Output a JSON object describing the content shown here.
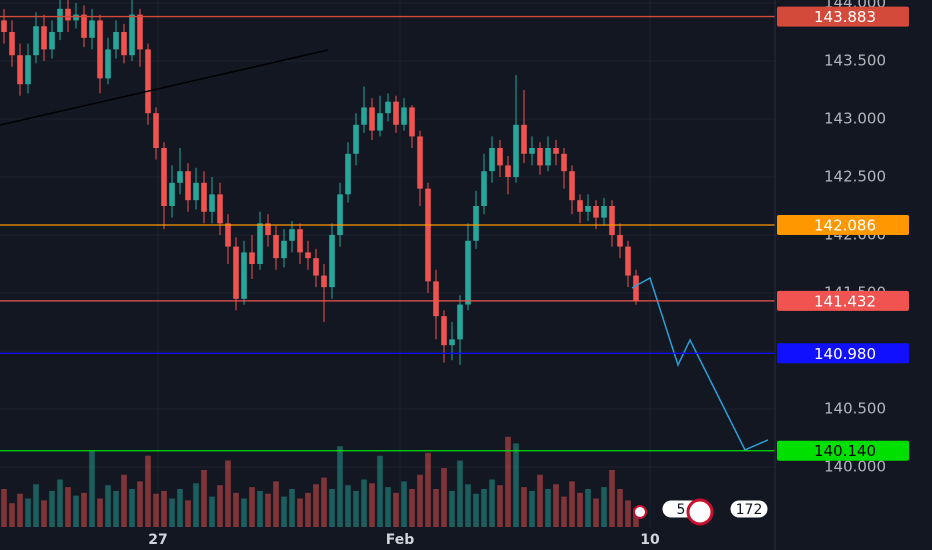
{
  "chart_data": {
    "type": "candlestick",
    "xlim": [
      -0.5,
      96.375
    ],
    "xticks": [
      {
        "value": 19.25,
        "label": "27"
      },
      {
        "value": 49.5,
        "label": "Feb"
      },
      {
        "value": 80.75,
        "label": "10"
      }
    ],
    "ylim": [
      139.284,
      144.026
    ],
    "yticks": [
      {
        "value": 140,
        "label": "140.000"
      },
      {
        "value": 140.5,
        "label": "140.500"
      },
      {
        "value": 141,
        "label": "141.000"
      },
      {
        "value": 141.5,
        "label": "141.500"
      },
      {
        "value": 142,
        "label": "142.000"
      },
      {
        "value": 142.5,
        "label": "142.500"
      },
      {
        "value": 143,
        "label": "143.000"
      },
      {
        "value": 143.5,
        "label": "143.500"
      },
      {
        "value": 144,
        "label": "144.000"
      }
    ],
    "grid": true,
    "up_color": "#26a69a",
    "down_color": "#ef5350",
    "open": [
      143.85,
      143.75,
      143.55,
      143.3,
      143.55,
      143.8,
      143.6,
      143.75,
      143.95,
      143.85,
      143.9,
      143.7,
      143.85,
      143.35,
      143.6,
      143.75,
      143.55,
      143.9,
      143.6,
      143.05,
      142.75,
      142.25,
      142.45,
      142.55,
      142.3,
      142.45,
      142.2,
      142.35,
      142.1,
      141.9,
      141.45,
      141.85,
      141.75,
      142.1,
      142.0,
      141.8,
      141.95,
      142.05,
      141.85,
      141.8,
      141.65,
      141.55,
      142.0,
      142.35,
      142.7,
      142.95,
      143.1,
      142.9,
      143.05,
      143.15,
      142.95,
      143.1,
      142.85,
      142.4,
      141.6,
      141.3,
      141.05,
      141.1,
      141.4,
      141.95,
      142.25,
      142.55,
      142.75,
      142.6,
      142.5,
      142.95,
      142.7,
      142.75,
      142.6,
      142.75,
      142.7,
      142.55,
      142.3,
      142.2,
      142.25,
      142.15,
      142.25,
      142.0,
      141.9,
      141.65
    ],
    "high": [
      143.95,
      143.85,
      143.65,
      143.65,
      143.92,
      143.9,
      143.85,
      144.03,
      144.03,
      144.0,
      143.98,
      143.95,
      143.9,
      143.7,
      143.85,
      143.82,
      144.03,
      143.95,
      143.65,
      143.1,
      142.8,
      142.6,
      142.75,
      142.62,
      142.58,
      142.55,
      142.5,
      142.45,
      142.18,
      141.98,
      141.95,
      142.0,
      142.2,
      142.18,
      142.08,
      142.05,
      142.12,
      142.1,
      141.95,
      141.88,
      141.75,
      142.1,
      142.45,
      142.8,
      143.05,
      143.28,
      143.18,
      143.2,
      143.22,
      143.2,
      143.18,
      143.12,
      142.9,
      142.45,
      141.7,
      141.35,
      141.25,
      141.48,
      142.1,
      142.38,
      142.7,
      142.85,
      142.82,
      142.68,
      143.38,
      143.25,
      142.85,
      142.8,
      142.85,
      142.82,
      142.75,
      142.6,
      142.35,
      142.35,
      142.3,
      142.32,
      142.3,
      142.1,
      141.95,
      141.7
    ],
    "low": [
      143.65,
      143.45,
      143.2,
      143.22,
      143.48,
      143.5,
      143.52,
      143.68,
      143.75,
      143.78,
      143.62,
      143.6,
      143.22,
      143.3,
      143.52,
      143.48,
      143.5,
      143.45,
      142.95,
      142.65,
      142.05,
      142.15,
      142.35,
      142.2,
      142.22,
      142.1,
      142.1,
      142.0,
      141.75,
      141.35,
      141.4,
      141.62,
      141.7,
      141.9,
      141.7,
      141.72,
      141.85,
      141.75,
      141.7,
      141.55,
      141.25,
      141.45,
      141.9,
      142.28,
      142.6,
      142.88,
      142.82,
      142.85,
      142.98,
      142.88,
      142.9,
      142.75,
      142.25,
      141.5,
      141.1,
      140.9,
      140.92,
      140.88,
      141.35,
      141.88,
      142.18,
      142.45,
      142.5,
      142.35,
      142.45,
      142.62,
      142.6,
      142.52,
      142.55,
      142.6,
      142.4,
      142.18,
      142.1,
      142.12,
      142.05,
      142.08,
      141.9,
      141.8,
      141.55,
      141.4
    ],
    "close": [
      143.75,
      143.55,
      143.3,
      143.55,
      143.8,
      143.6,
      143.75,
      143.95,
      143.85,
      143.9,
      143.7,
      143.85,
      143.35,
      143.6,
      143.75,
      143.55,
      143.9,
      143.6,
      143.05,
      142.75,
      142.25,
      142.45,
      142.55,
      142.3,
      142.45,
      142.2,
      142.35,
      142.1,
      141.9,
      141.45,
      141.85,
      141.75,
      142.1,
      142.0,
      141.8,
      141.95,
      142.05,
      141.85,
      141.8,
      141.65,
      141.55,
      142.0,
      142.35,
      142.7,
      142.95,
      143.1,
      142.9,
      143.05,
      143.15,
      142.95,
      143.1,
      142.85,
      142.4,
      141.6,
      141.3,
      141.05,
      141.1,
      141.4,
      141.95,
      142.25,
      142.55,
      142.75,
      142.6,
      142.5,
      142.95,
      142.7,
      142.75,
      142.6,
      142.75,
      142.7,
      142.55,
      142.3,
      142.2,
      142.25,
      142.15,
      142.25,
      142.0,
      141.9,
      141.65,
      141.43
    ],
    "volume": {
      "ylim": [
        0,
        100
      ],
      "values": [
        40,
        25,
        35,
        30,
        45,
        28,
        38,
        50,
        42,
        33,
        36,
        80,
        30,
        44,
        38,
        55,
        40,
        48,
        75,
        35,
        38,
        30,
        40,
        28,
        46,
        60,
        32,
        44,
        70,
        36,
        30,
        42,
        38,
        35,
        48,
        32,
        40,
        30,
        36,
        45,
        52,
        40,
        85,
        44,
        38,
        50,
        46,
        75,
        42,
        36,
        48,
        40,
        55,
        78,
        40,
        62,
        38,
        70,
        45,
        35,
        40,
        50,
        44,
        95,
        88,
        42,
        38,
        55,
        40,
        45,
        32,
        48,
        36,
        40,
        30,
        42,
        60,
        40,
        28,
        20
      ]
    },
    "levels": [
      {
        "value": 143.883,
        "label": "143.883",
        "color": "#d44a3a",
        "text_color": "#ffffff"
      },
      {
        "value": 142.086,
        "label": "142.086",
        "color": "#ff9800",
        "text_color": "#ffffff"
      },
      {
        "value": 141.432,
        "label": "141.432",
        "color": "#f05350",
        "text_color": "#ffffff"
      },
      {
        "value": 140.98,
        "label": "140.980",
        "color": "#1010ff",
        "text_color": "#ffffff"
      },
      {
        "value": 140.14,
        "label": "140.140",
        "color": "#00e000",
        "text_color": "#000000"
      }
    ],
    "trend_line": {
      "x": [
        -0.5,
        40.5
      ],
      "y": [
        142.948,
        143.595
      ],
      "color": "#000000"
    },
    "projection": {
      "x": [
        78.5,
        80.75,
        84.25,
        85.75,
        92.625,
        95.5
      ],
      "y": [
        141.543,
        141.629,
        140.879,
        141.095,
        140.147,
        140.233
      ],
      "color": "#2a9fd6"
    },
    "badges": [
      "5",
      "172"
    ]
  }
}
